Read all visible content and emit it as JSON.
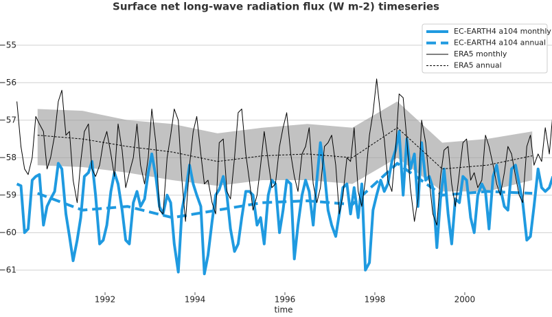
{
  "chart_data": {
    "type": "line",
    "title": "Surface net long-wave radiation flux (W m-2) timeseries",
    "xlabel": "time",
    "xlim": [
      1990,
      2001.94
    ],
    "xticks": [
      1992,
      1994,
      1996,
      1998,
      2000
    ],
    "ylim": [
      -61.59,
      -54.16
    ],
    "yticks": [
      {
        "value": -61,
        "label": "−61"
      },
      {
        "value": -60,
        "label": "−60"
      },
      {
        "value": -59,
        "label": "−59"
      },
      {
        "value": -58,
        "label": "−58"
      },
      {
        "value": -57,
        "label": "−57"
      },
      {
        "value": -56,
        "label": "−56"
      },
      {
        "value": -55,
        "label": "−55"
      }
    ],
    "grid": true,
    "legend": "upper right",
    "band": {
      "color": "#999999",
      "x": [
        1990.5,
        1991.5,
        1992.5,
        1993.5,
        1994.5,
        1995.5,
        1996.5,
        1997.5,
        1998.5,
        1999.5,
        2000.5,
        2001.5
      ],
      "upper": [
        -56.7,
        -56.75,
        -57.0,
        -57.1,
        -57.35,
        -57.2,
        -57.1,
        -57.2,
        -56.5,
        -57.6,
        -57.5,
        -57.3
      ],
      "lower": [
        -58.2,
        -58.25,
        -58.4,
        -58.6,
        -58.75,
        -58.6,
        -58.6,
        -58.7,
        -58.0,
        -58.9,
        -58.9,
        -58.6
      ]
    },
    "x": [
      1990.04,
      1990.13,
      1990.21,
      1990.29,
      1990.38,
      1990.46,
      1990.54,
      1990.63,
      1990.71,
      1990.79,
      1990.88,
      1990.96,
      1991.04,
      1991.13,
      1991.21,
      1991.29,
      1991.38,
      1991.46,
      1991.54,
      1991.63,
      1991.71,
      1991.79,
      1991.88,
      1991.96,
      1992.04,
      1992.13,
      1992.21,
      1992.29,
      1992.38,
      1992.46,
      1992.54,
      1992.63,
      1992.71,
      1992.79,
      1992.88,
      1992.96,
      1993.04,
      1993.13,
      1993.21,
      1993.29,
      1993.38,
      1993.46,
      1993.54,
      1993.63,
      1993.71,
      1993.79,
      1993.88,
      1993.96,
      1994.04,
      1994.13,
      1994.21,
      1994.29,
      1994.38,
      1994.46,
      1994.54,
      1994.63,
      1994.71,
      1994.79,
      1994.88,
      1994.96,
      1995.04,
      1995.13,
      1995.21,
      1995.29,
      1995.38,
      1995.46,
      1995.54,
      1995.63,
      1995.71,
      1995.79,
      1995.88,
      1995.96,
      1996.04,
      1996.13,
      1996.21,
      1996.29,
      1996.38,
      1996.46,
      1996.54,
      1996.63,
      1996.71,
      1996.79,
      1996.88,
      1996.96,
      1997.04,
      1997.13,
      1997.21,
      1997.29,
      1997.38,
      1997.46,
      1997.54,
      1997.63,
      1997.71,
      1997.79,
      1997.88,
      1997.96,
      1998.04,
      1998.13,
      1998.21,
      1998.29,
      1998.38,
      1998.46,
      1998.54,
      1998.63,
      1998.71,
      1998.79,
      1998.88,
      1998.96,
      1999.04,
      1999.13,
      1999.21,
      1999.29,
      1999.38,
      1999.46,
      1999.54,
      1999.63,
      1999.71,
      1999.79,
      1999.88,
      1999.96,
      2000.04,
      2000.13,
      2000.21,
      2000.29,
      2000.38,
      2000.46,
      2000.54,
      2000.63,
      2000.71,
      2000.79,
      2000.88,
      2000.96,
      2001.04,
      2001.13,
      2001.21,
      2001.29,
      2001.38,
      2001.46,
      2001.54,
      2001.63,
      2001.71,
      2001.79,
      2001.88,
      2001.96
    ],
    "series": [
      {
        "name": "EC-EARTH4 a104 monthly",
        "color": "#1f9ae0",
        "width": 4,
        "dash": "none",
        "values": [
          -58.7,
          -58.75,
          -60.0,
          -59.9,
          -58.6,
          -58.5,
          -58.45,
          -59.8,
          -59.3,
          -59.1,
          -58.9,
          -58.15,
          -58.3,
          -59.5,
          -60.1,
          -60.75,
          -60.2,
          -59.6,
          -58.5,
          -58.4,
          -58.1,
          -59.0,
          -60.3,
          -60.2,
          -59.8,
          -58.9,
          -58.4,
          -58.7,
          -59.4,
          -60.2,
          -60.3,
          -59.2,
          -58.9,
          -59.3,
          -59.1,
          -58.4,
          -57.9,
          -58.5,
          -59.3,
          -59.5,
          -59.0,
          -59.2,
          -60.3,
          -61.05,
          -59.4,
          -58.9,
          -58.2,
          -58.7,
          -59.0,
          -59.3,
          -61.1,
          -60.6,
          -59.7,
          -59.0,
          -58.85,
          -58.5,
          -59.0,
          -59.9,
          -60.5,
          -60.3,
          -59.6,
          -58.9,
          -58.9,
          -59.0,
          -59.8,
          -59.6,
          -60.3,
          -59.0,
          -58.6,
          -58.7,
          -60.0,
          -59.4,
          -58.6,
          -58.7,
          -60.7,
          -59.8,
          -59.0,
          -58.6,
          -58.9,
          -59.8,
          -58.6,
          -57.6,
          -58.4,
          -59.4,
          -59.8,
          -60.1,
          -59.5,
          -58.8,
          -58.7,
          -59.5,
          -58.8,
          -59.6,
          -58.7,
          -61.0,
          -60.8,
          -59.4,
          -59.0,
          -58.6,
          -58.9,
          -58.7,
          -58.1,
          -57.8,
          -57.3,
          -59.0,
          -57.5,
          -58.3,
          -57.9,
          -59.3,
          -57.6,
          -58.6,
          -58.5,
          -58.8,
          -60.4,
          -59.1,
          -58.3,
          -59.5,
          -60.3,
          -59.1,
          -59.2,
          -58.5,
          -58.6,
          -59.6,
          -60.0,
          -59.0,
          -58.7,
          -58.9,
          -59.9,
          -58.5,
          -58.2,
          -58.8,
          -59.3,
          -59.4,
          -58.3,
          -58.2,
          -58.7,
          -59.2,
          -60.2,
          -60.1,
          -59.3,
          -58.3,
          -58.8,
          -58.9,
          -58.8,
          -58.5
        ]
      },
      {
        "name": "EC-EARTH4 a104 annual",
        "color": "#1f9ae0",
        "width": 4,
        "dash": "14,7",
        "x": [
          1990.5,
          1991.5,
          1992.5,
          1993.5,
          1994.5,
          1995.5,
          1996.5,
          1997.5,
          1998.5,
          1999.5,
          2000.5,
          2001.5
        ],
        "values": [
          -58.95,
          -59.4,
          -59.3,
          -59.6,
          -59.4,
          -59.2,
          -59.15,
          -59.25,
          -58.15,
          -59.0,
          -58.9,
          -58.95
        ]
      },
      {
        "name": "ERA5 monthly",
        "color": "#000000",
        "width": 1,
        "dash": "none",
        "values": [
          -56.5,
          -57.7,
          -58.3,
          -58.45,
          -58.0,
          -56.9,
          -57.1,
          -57.3,
          -58.3,
          -58.0,
          -57.4,
          -56.5,
          -56.2,
          -57.4,
          -57.3,
          -58.6,
          -59.2,
          -58.1,
          -57.3,
          -57.1,
          -58.3,
          -58.5,
          -58.2,
          -57.6,
          -57.3,
          -57.9,
          -58.5,
          -57.1,
          -57.8,
          -58.8,
          -58.4,
          -58.0,
          -57.1,
          -58.2,
          -58.7,
          -58.0,
          -56.7,
          -57.6,
          -59.4,
          -59.5,
          -58.0,
          -57.4,
          -56.7,
          -57.0,
          -58.6,
          -59.7,
          -58.2,
          -57.3,
          -56.9,
          -57.9,
          -58.7,
          -58.6,
          -59.2,
          -59.5,
          -57.6,
          -57.5,
          -58.9,
          -59.1,
          -58.0,
          -56.8,
          -56.7,
          -57.9,
          -58.6,
          -59.4,
          -59.0,
          -58.2,
          -57.3,
          -58.1,
          -58.8,
          -58.7,
          -57.7,
          -57.2,
          -56.8,
          -57.9,
          -58.5,
          -58.9,
          -57.9,
          -57.7,
          -57.2,
          -58.7,
          -59.2,
          -58.8,
          -57.7,
          -57.6,
          -57.4,
          -58.2,
          -59.5,
          -59.0,
          -58.0,
          -58.1,
          -57.2,
          -58.9,
          -59.3,
          -58.6,
          -57.4,
          -56.8,
          -55.9,
          -56.9,
          -57.5,
          -58.6,
          -58.9,
          -57.8,
          -56.3,
          -56.4,
          -57.5,
          -58.8,
          -59.7,
          -59.1,
          -57.0,
          -57.6,
          -58.6,
          -59.5,
          -59.8,
          -58.5,
          -57.8,
          -57.7,
          -58.7,
          -59.3,
          -58.4,
          -57.6,
          -57.5,
          -58.6,
          -58.4,
          -58.8,
          -58.6,
          -57.4,
          -57.7,
          -58.2,
          -58.7,
          -59.0,
          -58.4,
          -57.7,
          -57.9,
          -58.5,
          -59.0,
          -59.2,
          -57.7,
          -57.4,
          -58.2,
          -57.9,
          -58.1,
          -57.2,
          -57.9,
          -56.8
        ]
      },
      {
        "name": "ERA5 annual",
        "color": "#000000",
        "width": 1,
        "dash": "3,2",
        "x": [
          1990.5,
          1991.5,
          1992.5,
          1993.5,
          1994.5,
          1995.5,
          1996.5,
          1997.5,
          1998.5,
          1999.5,
          2000.5,
          2001.5
        ],
        "values": [
          -57.4,
          -57.5,
          -57.7,
          -57.85,
          -58.1,
          -57.95,
          -57.9,
          -58.0,
          -57.2,
          -58.3,
          -58.2,
          -57.95
        ]
      }
    ]
  }
}
